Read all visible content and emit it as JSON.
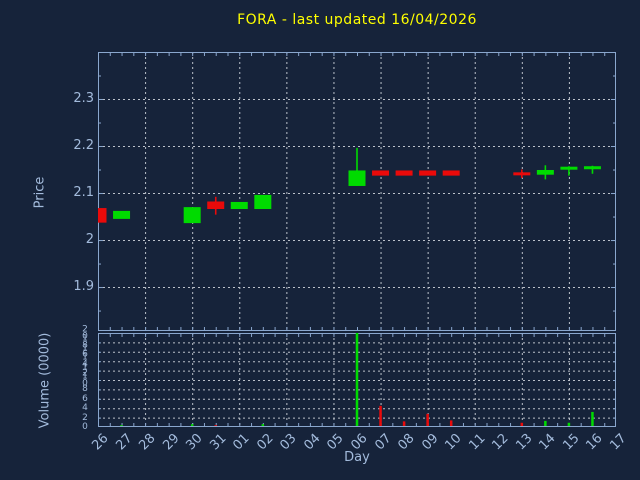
{
  "title": "FORA - last updated 16/04/2026",
  "colors": {
    "background": "#16233A",
    "axis": "#8AA7CE",
    "grid": "#BCC2CB",
    "tick_text": "#A3BBDC",
    "title_text": "#FFFF00",
    "up": "#00DB00",
    "down": "#EA0A0A"
  },
  "chart_data": [
    {
      "type": "candlestick",
      "title": "FORA - last updated 16/04/2026",
      "xlabel": "Day",
      "ylabel": "Price",
      "x_categories": [
        "26",
        "27",
        "28",
        "29",
        "30",
        "31",
        "01",
        "02",
        "03",
        "04",
        "05",
        "06",
        "07",
        "08",
        "09",
        "10",
        "11",
        "12",
        "13",
        "14",
        "15",
        "16",
        "17"
      ],
      "ylim": [
        1.8,
        2.4
      ],
      "ytick_labels": [
        "1.9",
        "2",
        "2.1",
        "2.2",
        "2.3"
      ],
      "yticks": [
        1.9,
        2.0,
        2.1,
        2.2,
        2.3
      ],
      "grid": "dashed, vertical line every 2 days",
      "legend": "none",
      "candles": [
        {
          "day": "26",
          "open": 2.068,
          "high": 2.068,
          "low": 2.037,
          "close": 2.037,
          "dir": "down"
        },
        {
          "day": "27",
          "open": 2.045,
          "high": 2.062,
          "low": 2.045,
          "close": 2.062,
          "dir": "up"
        },
        {
          "day": "30",
          "open": 2.036,
          "high": 2.07,
          "low": 2.036,
          "close": 2.07,
          "dir": "up"
        },
        {
          "day": "31",
          "open": 2.082,
          "high": 2.092,
          "low": 2.054,
          "close": 2.066,
          "dir": "down"
        },
        {
          "day": "01",
          "open": 2.066,
          "high": 2.081,
          "low": 2.066,
          "close": 2.081,
          "dir": "up"
        },
        {
          "day": "02",
          "open": 2.066,
          "high": 2.096,
          "low": 2.066,
          "close": 2.096,
          "dir": "up"
        },
        {
          "day": "06",
          "open": 2.115,
          "high": 2.196,
          "low": 2.115,
          "close": 2.148,
          "dir": "up"
        },
        {
          "day": "07",
          "open": 2.148,
          "high": 2.148,
          "low": 2.137,
          "close": 2.137,
          "dir": "down"
        },
        {
          "day": "08",
          "open": 2.148,
          "high": 2.148,
          "low": 2.137,
          "close": 2.137,
          "dir": "down"
        },
        {
          "day": "09",
          "open": 2.148,
          "high": 2.148,
          "low": 2.137,
          "close": 2.137,
          "dir": "down"
        },
        {
          "day": "10",
          "open": 2.148,
          "high": 2.148,
          "low": 2.137,
          "close": 2.137,
          "dir": "down"
        },
        {
          "day": "13",
          "open": 2.144,
          "high": 2.15,
          "low": 2.132,
          "close": 2.138,
          "dir": "down"
        },
        {
          "day": "14",
          "open": 2.139,
          "high": 2.159,
          "low": 2.129,
          "close": 2.149,
          "dir": "up"
        },
        {
          "day": "15",
          "open": 2.156,
          "high": 2.157,
          "low": 2.137,
          "close": 2.156,
          "dir": "up"
        },
        {
          "day": "16",
          "open": 2.157,
          "high": 2.158,
          "low": 2.141,
          "close": 2.157,
          "dir": "up"
        }
      ]
    },
    {
      "type": "bar",
      "xlabel": "Day",
      "ylabel": "Volume (0000)",
      "ylim": [
        0,
        20
      ],
      "ytick_labels": [
        "0",
        "2",
        "4",
        "6",
        "8",
        "10",
        "12",
        "14",
        "16",
        "18",
        "20"
      ],
      "yticks": [
        0,
        2,
        4,
        6,
        8,
        10,
        12,
        14,
        16,
        18,
        20
      ],
      "bars": [
        {
          "day": "27",
          "value": 0.4,
          "dir": "up"
        },
        {
          "day": "30",
          "value": 0.6,
          "dir": "up"
        },
        {
          "day": "31",
          "value": 0.4,
          "dir": "down"
        },
        {
          "day": "02",
          "value": 0.6,
          "dir": "up"
        },
        {
          "day": "06",
          "value": 20,
          "dir": "up"
        },
        {
          "day": "07",
          "value": 4.5,
          "dir": "down"
        },
        {
          "day": "08",
          "value": 1.2,
          "dir": "down"
        },
        {
          "day": "09",
          "value": 2.8,
          "dir": "down"
        },
        {
          "day": "10",
          "value": 1.4,
          "dir": "down"
        },
        {
          "day": "13",
          "value": 0.9,
          "dir": "down"
        },
        {
          "day": "14",
          "value": 1.3,
          "dir": "up"
        },
        {
          "day": "15",
          "value": 0.9,
          "dir": "up"
        },
        {
          "day": "16",
          "value": 3.2,
          "dir": "up"
        }
      ]
    }
  ]
}
